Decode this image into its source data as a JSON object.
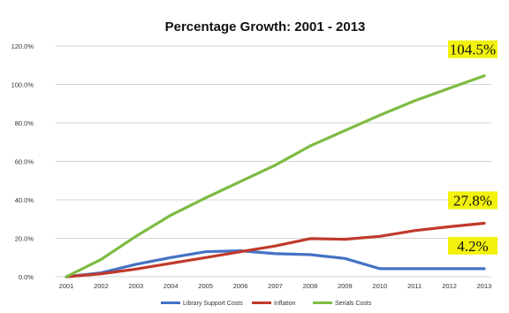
{
  "chart_data": {
    "type": "line",
    "title": "Percentage Growth: 2001 - 2013",
    "xlabel": "",
    "ylabel": "",
    "x": [
      "2001",
      "2002",
      "2003",
      "2004",
      "2005",
      "2006",
      "2007",
      "2008",
      "2009",
      "2010",
      "2011",
      "2012",
      "2013"
    ],
    "ylim": [
      0,
      120
    ],
    "y_ticks": [
      0,
      20,
      40,
      60,
      80,
      100,
      120
    ],
    "y_tick_labels": [
      "0.0%",
      "20.0%",
      "40.0%",
      "60.0%",
      "80.0%",
      "100.0%",
      "120.0%"
    ],
    "grid": "horizontal",
    "legend_position": "bottom",
    "series": [
      {
        "name": "Library Support Costs",
        "color": "#4472C4",
        "values": [
          0,
          2,
          6.5,
          10,
          13,
          13.5,
          12,
          11.5,
          9.5,
          4.2,
          4.2,
          4.2,
          4.2
        ]
      },
      {
        "name": "Inflation",
        "color": "#C0392B",
        "values": [
          0,
          1.5,
          4,
          7,
          10,
          13,
          16,
          19.8,
          19.5,
          21,
          24,
          26,
          27.8
        ]
      },
      {
        "name": "Serials Costs",
        "color": "#7DBB42",
        "values": [
          0,
          9,
          21,
          32,
          41,
          49.5,
          58,
          68,
          76,
          84,
          91.5,
          98,
          104.5
        ]
      }
    ],
    "annotations": [
      {
        "text": "104.5%",
        "series": 2,
        "highlight": "#F2F20E"
      },
      {
        "text": "27.8%",
        "series": 1,
        "highlight": "#F2F20E"
      },
      {
        "text": "4.2%",
        "series": 0,
        "highlight": "#F2F20E"
      }
    ]
  }
}
